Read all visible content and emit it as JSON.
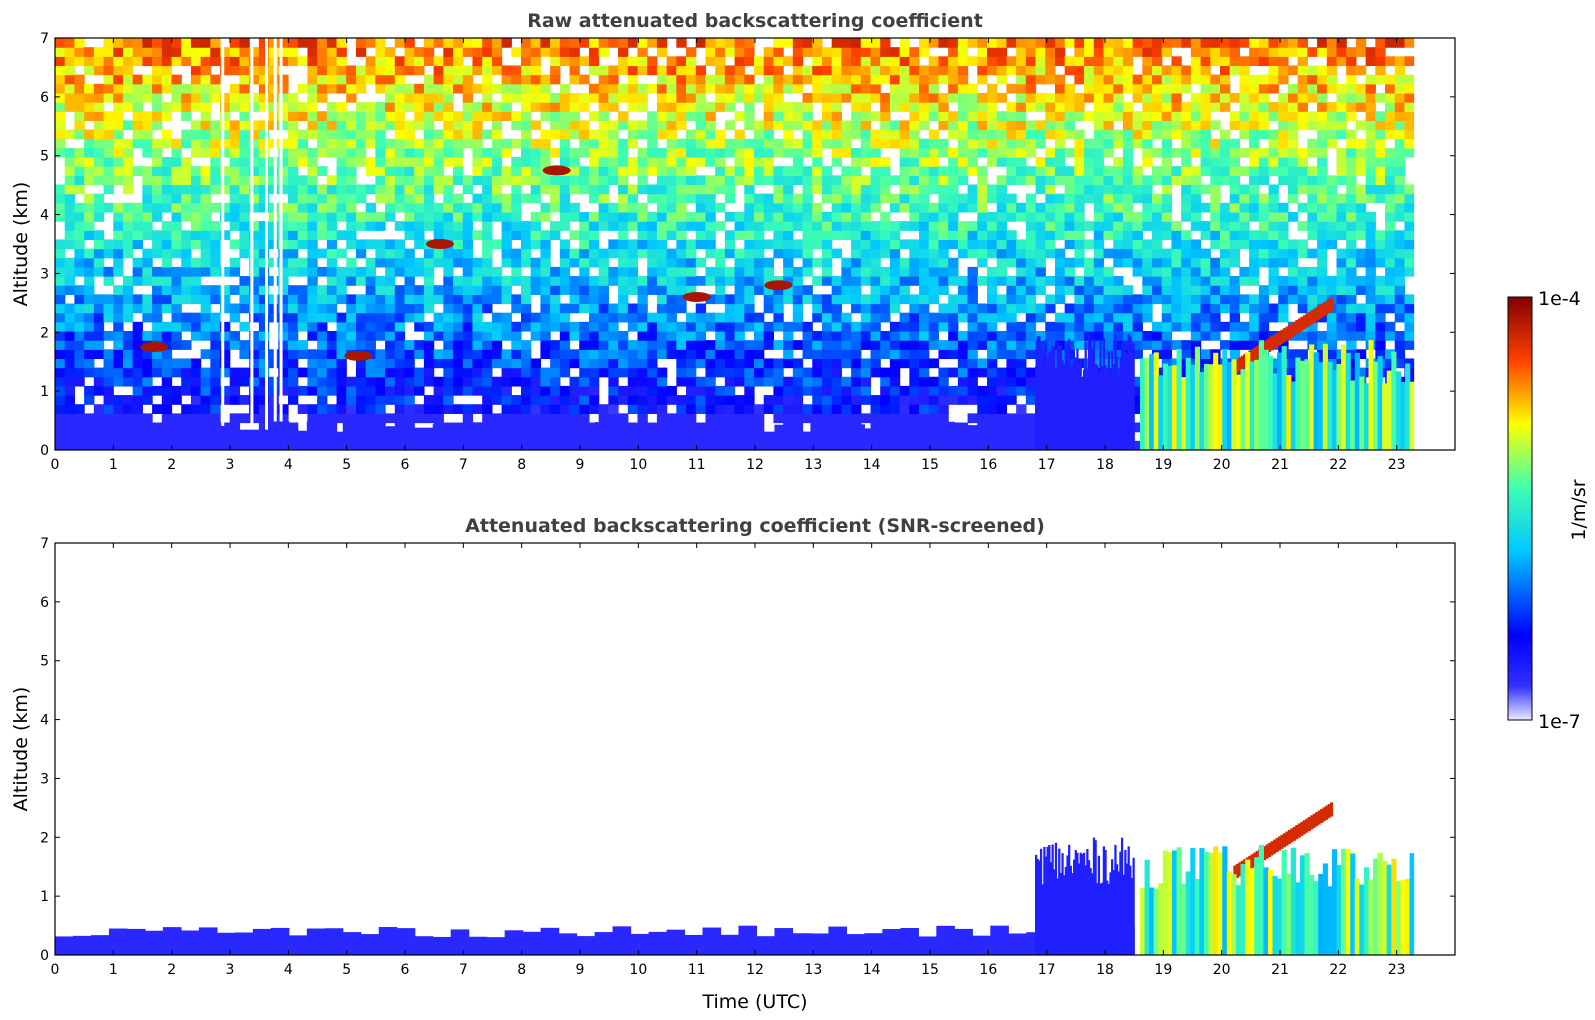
{
  "chart_data": [
    {
      "type": "heatmap",
      "title": "Raw attenuated backscattering coefficient",
      "xlabel": "",
      "ylabel": "Altitude (km)",
      "xlim": [
        0,
        24
      ],
      "ylim": [
        0,
        7
      ],
      "x_ticks": [
        "0",
        "1",
        "2",
        "3",
        "4",
        "5",
        "6",
        "7",
        "8",
        "9",
        "10",
        "11",
        "12",
        "13",
        "14",
        "15",
        "16",
        "17",
        "18",
        "19",
        "20",
        "21",
        "22",
        "23"
      ],
      "y_ticks": [
        "0",
        "1",
        "2",
        "3",
        "4",
        "5",
        "6",
        "7"
      ],
      "data_end_time": 23.3,
      "gaps": [
        2.85,
        3.35,
        3.6,
        3.75,
        3.85
      ],
      "features": [
        {
          "kind": "surface_layer",
          "t0": 0,
          "t1": 18.5,
          "top": 0.4,
          "level": 0.1
        },
        {
          "kind": "boundary_layer",
          "t0": 16.8,
          "t1": 18.5,
          "top": 1.6,
          "level": 0.12
        },
        {
          "kind": "cloud",
          "t": 1.7,
          "z": 1.75,
          "level": 0.95
        },
        {
          "kind": "cloud",
          "t": 5.2,
          "z": 1.6,
          "level": 0.95
        },
        {
          "kind": "cloud",
          "t": 6.6,
          "z": 3.5,
          "level": 0.95
        },
        {
          "kind": "cloud",
          "t": 8.6,
          "z": 4.75,
          "level": 0.95
        },
        {
          "kind": "cloud",
          "t": 11.0,
          "z": 2.6,
          "level": 0.95
        },
        {
          "kind": "cloud",
          "t": 12.4,
          "z": 2.8,
          "level": 0.95
        },
        {
          "kind": "aerosol_layer",
          "t0": 20.2,
          "t1": 21.9,
          "z0": 1.4,
          "z1": 2.5,
          "level": 0.9
        },
        {
          "kind": "dense_aerosol",
          "t0": 18.6,
          "t1": 23.3,
          "top": 1.5,
          "level": 0.55
        }
      ]
    },
    {
      "type": "heatmap",
      "title": "Attenuated backscattering coefficient (SNR-screened)",
      "xlabel": "Time (UTC)",
      "ylabel": "Altitude (km)",
      "xlim": [
        0,
        24
      ],
      "ylim": [
        0,
        7
      ],
      "x_ticks": [
        "0",
        "1",
        "2",
        "3",
        "4",
        "5",
        "6",
        "7",
        "8",
        "9",
        "10",
        "11",
        "12",
        "13",
        "14",
        "15",
        "16",
        "17",
        "18",
        "19",
        "20",
        "21",
        "22",
        "23"
      ],
      "y_ticks": [
        "0",
        "1",
        "2",
        "3",
        "4",
        "5",
        "6",
        "7"
      ],
      "data_end_time": 23.3,
      "features": [
        {
          "kind": "surface_layer",
          "t0": 0,
          "t1": 18.5,
          "top": 0.4,
          "level": 0.1
        },
        {
          "kind": "boundary_layer",
          "t0": 16.8,
          "t1": 18.5,
          "top": 1.6,
          "level": 0.12
        },
        {
          "kind": "aerosol_layer",
          "t0": 20.2,
          "t1": 21.9,
          "z0": 1.4,
          "z1": 2.5,
          "level": 0.9
        },
        {
          "kind": "dense_aerosol",
          "t0": 18.6,
          "t1": 23.3,
          "top": 1.5,
          "level": 0.55
        }
      ]
    }
  ],
  "colorbar": {
    "label": "1/m/sr",
    "min_label": "1e-7",
    "max_label": "1e-4",
    "colormap": "jet",
    "colors": [
      "#e8e8ff",
      "#0000ff",
      "#00ffff",
      "#ffff00",
      "#ff0000",
      "#800000"
    ]
  }
}
